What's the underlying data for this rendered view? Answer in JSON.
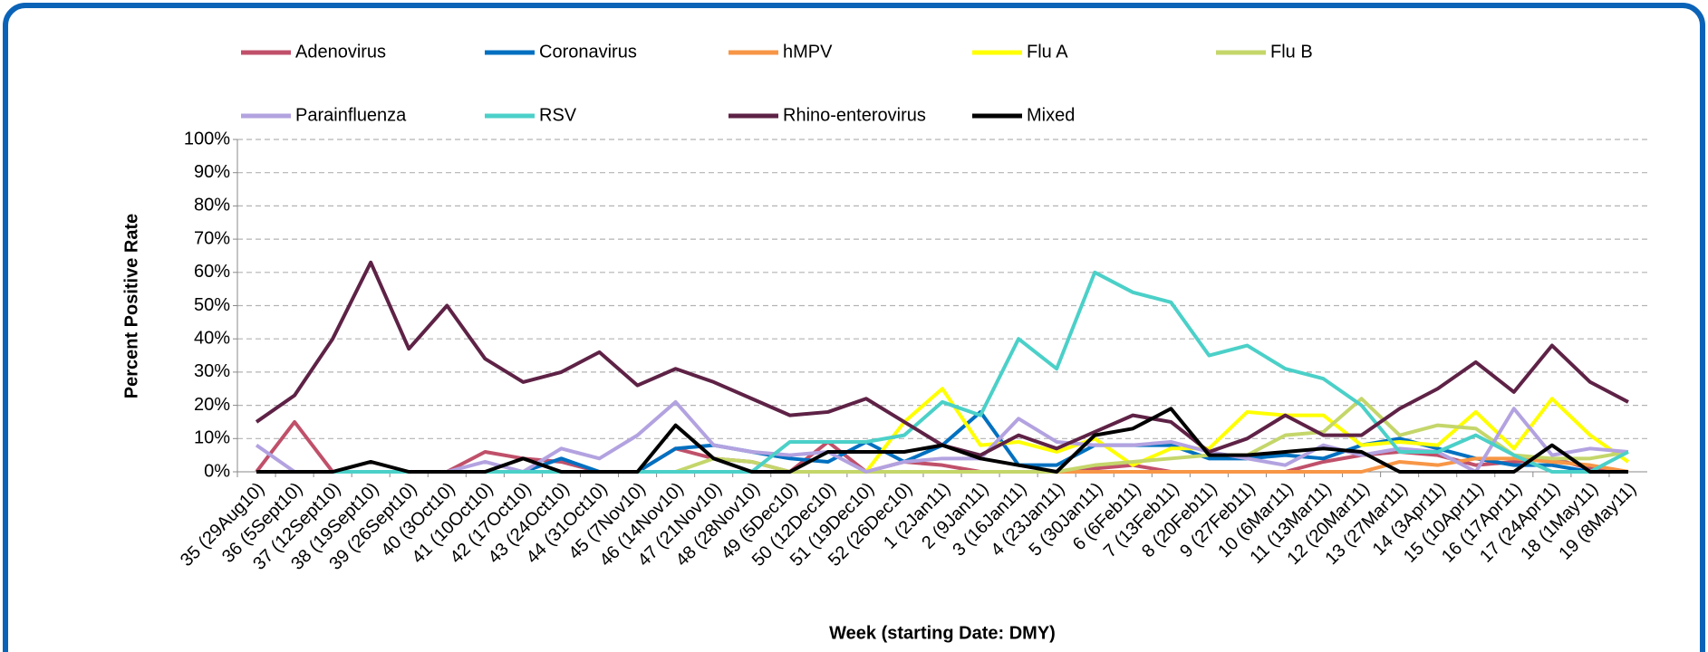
{
  "chart_data": {
    "type": "line",
    "x_label": "Week (starting Date: DMY)",
    "y_label": "Percent Positive Rate",
    "categories": [
      "35 (29Aug10)",
      "36 (5Sept10)",
      "37 (12Sept10)",
      "38 (19Sept10)",
      "39 (26Sept10)",
      "40 (3Oct10)",
      "41 (10Oct10)",
      "42 (17Oct10)",
      "43 (24Oct10)",
      "44 (31Oct10)",
      "45 (7Nov10)",
      "46 (14Nov10)",
      "47 (21Nov10)",
      "48 (28Nov10)",
      "49 (5Dec10)",
      "50 (12Dec10)",
      "51 (19Dec10)",
      "52 (26Dec10)",
      "1 (2Jan11)",
      "2 (9Jan11)",
      "3 (16Jan11)",
      "4 (23Jan11)",
      "5 (30Jan11)",
      "6 (6Feb11)",
      "7 (13Feb11)",
      "8 (20Feb11)",
      "9 (27Feb11)",
      "10 (6Mar11)",
      "11 (13Mar11)",
      "12 (20Mar11)",
      "13 (27Mar11)",
      "14 (3Apr11)",
      "15 (10Apr11)",
      "16 (17Apr11)",
      "17 (24Apr11)",
      "18 (1May11)",
      "19 (8May11)"
    ],
    "ylim": [
      0,
      100
    ],
    "yticks": [
      {
        "value": 0,
        "label": "0%"
      },
      {
        "value": 10,
        "label": "10%"
      },
      {
        "value": 20,
        "label": "20%"
      },
      {
        "value": 30,
        "label": "30%"
      },
      {
        "value": 40,
        "label": "40%"
      },
      {
        "value": 50,
        "label": "50%"
      },
      {
        "value": 60,
        "label": "60%"
      },
      {
        "value": 70,
        "label": "70%"
      },
      {
        "value": 80,
        "label": "80%"
      },
      {
        "value": 90,
        "label": "90%"
      },
      {
        "value": 100,
        "label": "100%"
      }
    ],
    "grid": true,
    "legend": "top",
    "series": [
      {
        "name": "Adenovirus",
        "color": "#c0506a",
        "values": [
          0,
          15,
          0,
          0,
          0,
          0,
          6,
          4,
          3,
          0,
          0,
          7,
          4,
          3,
          0,
          9,
          0,
          3,
          2,
          0,
          0,
          0,
          1,
          2,
          0,
          0,
          0,
          0,
          3,
          5,
          6,
          5,
          2,
          3,
          4,
          1,
          0
        ]
      },
      {
        "name": "Coronavirus",
        "color": "#0070c0",
        "values": [
          0,
          0,
          0,
          0,
          0,
          0,
          0,
          0,
          4,
          0,
          0,
          7,
          8,
          6,
          4,
          3,
          9,
          3,
          8,
          18,
          2,
          2,
          8,
          8,
          8,
          4,
          4,
          5,
          4,
          8,
          10,
          7,
          4,
          2,
          2,
          0,
          0
        ]
      },
      {
        "name": "hMPV",
        "color": "#f79646",
        "values": [
          0,
          0,
          0,
          0,
          0,
          0,
          0,
          0,
          0,
          0,
          0,
          0,
          0,
          0,
          0,
          0,
          0,
          0,
          0,
          0,
          0,
          0,
          0,
          0,
          0,
          0,
          0,
          0,
          0,
          0,
          3,
          2,
          4,
          4,
          3,
          2,
          0
        ]
      },
      {
        "name": "Flu A",
        "color": "#ffff00",
        "values": [
          0,
          0,
          0,
          0,
          0,
          0,
          0,
          0,
          0,
          0,
          0,
          0,
          0,
          0,
          0,
          0,
          0,
          15,
          25,
          8,
          9,
          6,
          10,
          2,
          7,
          7,
          18,
          17,
          17,
          8,
          9,
          8,
          18,
          7,
          22,
          11,
          3
        ]
      },
      {
        "name": "Flu B",
        "color": "#c4d66a",
        "values": [
          0,
          0,
          0,
          0,
          0,
          0,
          0,
          0,
          0,
          0,
          0,
          0,
          4,
          3,
          0,
          0,
          0,
          0,
          0,
          0,
          0,
          0,
          2,
          3,
          4,
          5,
          5,
          11,
          12,
          22,
          11,
          14,
          13,
          5,
          4,
          4,
          6
        ]
      },
      {
        "name": "Parainfluenza",
        "color": "#b3a2e0",
        "values": [
          8,
          0,
          0,
          0,
          0,
          0,
          3,
          0,
          7,
          4,
          11,
          21,
          8,
          6,
          5,
          6,
          0,
          3,
          4,
          4,
          16,
          9,
          8,
          8,
          9,
          6,
          4,
          2,
          8,
          5,
          7,
          6,
          0,
          19,
          5,
          7,
          6
        ]
      },
      {
        "name": "RSV",
        "color": "#4bd0c8",
        "values": [
          0,
          0,
          0,
          0,
          0,
          0,
          0,
          0,
          0,
          0,
          0,
          0,
          0,
          0,
          9,
          9,
          9,
          11,
          21,
          17,
          40,
          31,
          60,
          54,
          51,
          35,
          38,
          31,
          28,
          20,
          6,
          6,
          11,
          5,
          0,
          0,
          6
        ]
      },
      {
        "name": "Rhino-enterovirus",
        "color": "#5e2246",
        "values": [
          15,
          23,
          40,
          63,
          37,
          50,
          34,
          27,
          30,
          36,
          26,
          31,
          27,
          22,
          17,
          18,
          22,
          15,
          8,
          5,
          11,
          7,
          12,
          17,
          15,
          6,
          10,
          17,
          11,
          11,
          19,
          25,
          33,
          24,
          38,
          27,
          21
        ]
      },
      {
        "name": "Mixed",
        "color": "#000000",
        "values": [
          0,
          0,
          0,
          3,
          0,
          0,
          0,
          4,
          0,
          0,
          0,
          14,
          4,
          0,
          0,
          6,
          6,
          6,
          8,
          4,
          2,
          0,
          11,
          13,
          19,
          5,
          5,
          6,
          7,
          6,
          0,
          0,
          0,
          0,
          8,
          0,
          0
        ]
      }
    ]
  }
}
